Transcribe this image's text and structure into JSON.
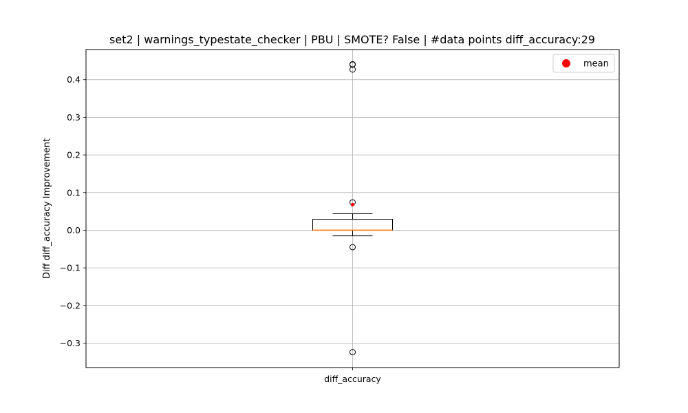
{
  "chart_data": {
    "type": "box",
    "title": "set2 | warnings_typestate_checker | PBU | SMOTE? False | #data points diff_accuracy:29",
    "xlabel": "",
    "ylabel": "Diff diff_accuracy Improvement",
    "categories": [
      "diff_accuracy"
    ],
    "ylim": [
      -0.365,
      0.48
    ],
    "yticks": [
      -0.3,
      -0.2,
      -0.1,
      0.0,
      0.1,
      0.2,
      0.3,
      0.4
    ],
    "ytick_labels": [
      "−0.3",
      "−0.2",
      "−0.1",
      "0.0",
      "0.1",
      "0.2",
      "0.3",
      "0.4"
    ],
    "grid": true,
    "box": {
      "q1": 0.0,
      "median": 0.0,
      "q3": 0.029,
      "whisker_low": -0.015,
      "whisker_high": 0.044,
      "mean": 0.068,
      "outliers": [
        0.44,
        0.441,
        0.427,
        0.074,
        -0.045,
        -0.324
      ]
    },
    "legend": {
      "position": "top-right",
      "entries": [
        {
          "label": "mean",
          "color": "#ff0000"
        }
      ]
    },
    "colors": {
      "median": "#ff7f0e",
      "mean": "#ff0000",
      "box": "#000000",
      "grid": "#b0b0b0"
    }
  }
}
